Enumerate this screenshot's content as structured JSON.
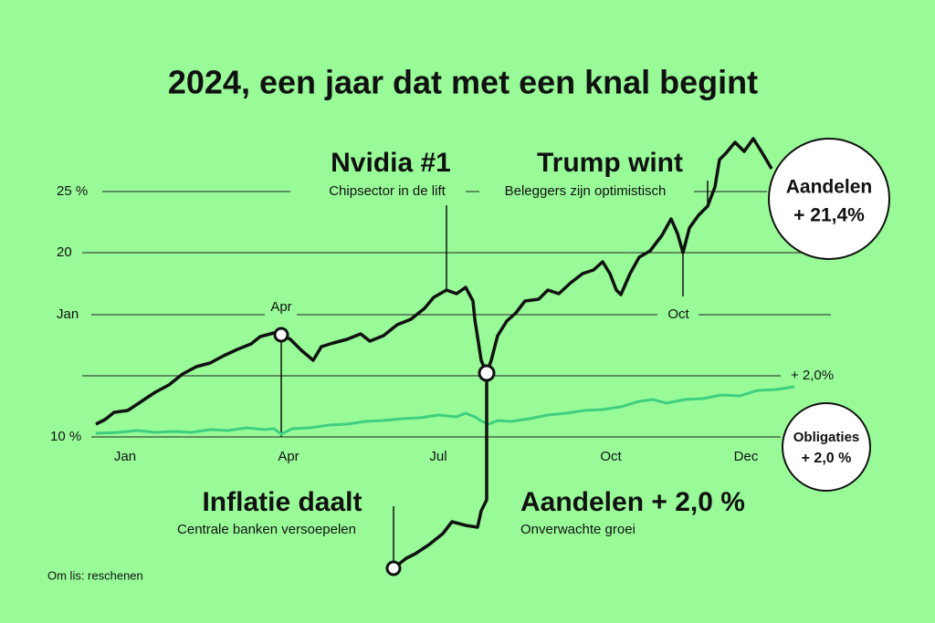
{
  "title": "2024, een jaar dat met een knal begint",
  "y_labels": [
    "25 %",
    "20",
    "Jan",
    "10 %"
  ],
  "x_labels": [
    "Jan",
    "Apr",
    "Jul",
    "Oct",
    "Dec"
  ],
  "markers": {
    "apr": "Apr",
    "oct": "Oct",
    "bond_end": "+ 2,0%"
  },
  "annotations": [
    {
      "title": "Nvidia #1",
      "subtitle": "Chipsector in de lift"
    },
    {
      "title": "Trump wint",
      "subtitle": "Beleggers zijn optimistisch"
    },
    {
      "title": "Inflatie daalt",
      "subtitle": "Centrale banken versoepelen"
    },
    {
      "title": "Aandelen + 2,0 %",
      "subtitle": "Onverwachte groei"
    }
  ],
  "badges": [
    {
      "line1": "Aandelen",
      "line2": "+ 21,4%"
    },
    {
      "line1": "Obligaties",
      "line2": "+ 2,0 %"
    }
  ],
  "source": "Om lis: reschenen"
}
